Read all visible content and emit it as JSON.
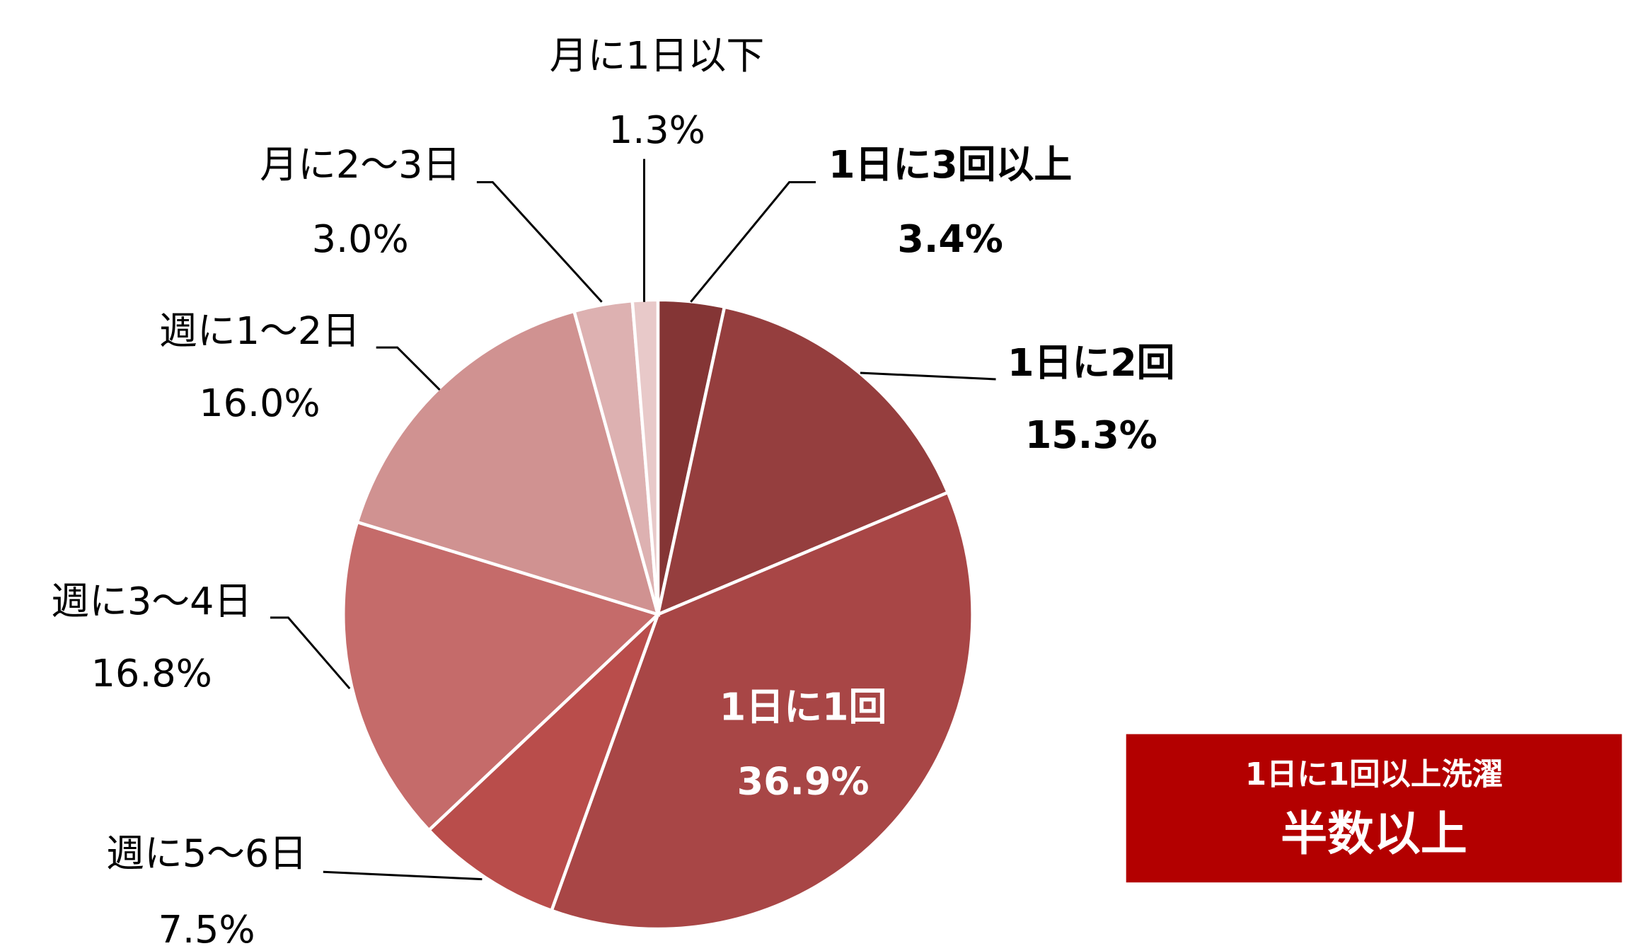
{
  "chart_data": {
    "type": "pie",
    "categories": [
      "1日に3回以上",
      "1日に2回",
      "1日に1回",
      "週に5～6日",
      "週に3～4日",
      "週に1～2日",
      "月に2～3日",
      "月に1日以下"
    ],
    "values": [
      3.4,
      15.3,
      36.9,
      7.5,
      16.8,
      16.0,
      3.0,
      1.3
    ],
    "value_labels": [
      "3.4%",
      "15.3%",
      "36.9%",
      "7.5%",
      "16.8%",
      "16.0%",
      "3.0%",
      "1.3%"
    ],
    "colors": [
      "#843535",
      "#953e3e",
      "#a84646",
      "#b94d4b",
      "#c56b6a",
      "#d09291",
      "#ddb1b1",
      "#e8c9c9"
    ],
    "annotation": {
      "line1": "1日に1回以上洗濯",
      "line2": "半数以上"
    }
  }
}
